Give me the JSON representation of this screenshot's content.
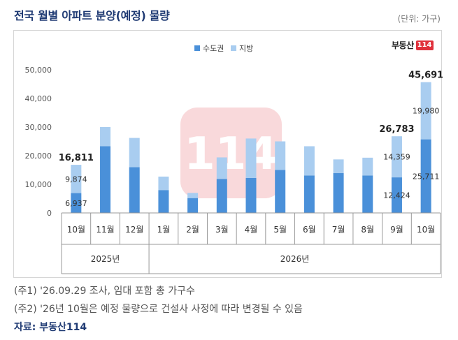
{
  "header": {
    "title": "전국 월별 아파트 분양(예정) 물량",
    "unit": "(단위: 가구)"
  },
  "brand": {
    "text": "부동산",
    "badge": "114"
  },
  "watermark": "114",
  "notes": [
    "(주1) '26.09.29 조사, 임대 포함 총 가구수",
    "(주2) '26년 10월은 예정 물량으로 건설사 사정에 따라 변경될 수 있음"
  ],
  "source": "자료: 부동산114",
  "colors": {
    "metro": "#4a90d9",
    "local": "#a9cdf0",
    "axis": "#999999",
    "title": "#1f3a73"
  },
  "chart_data": {
    "type": "bar",
    "stacked": true,
    "categories": [
      "10월",
      "11월",
      "12월",
      "1월",
      "2월",
      "3월",
      "4월",
      "5월",
      "6월",
      "7월",
      "8월",
      "9월",
      "10월"
    ],
    "groups": [
      {
        "label": "2025년",
        "start": 0,
        "end": 2
      },
      {
        "label": "2026년",
        "start": 3,
        "end": 12
      }
    ],
    "series": [
      {
        "name": "수도권",
        "values": [
          6937,
          23300,
          16000,
          8000,
          5200,
          11900,
          12200,
          15000,
          13100,
          13900,
          13100,
          12424,
          25711
        ]
      },
      {
        "name": "지방",
        "values": [
          9874,
          6700,
          10200,
          4700,
          1800,
          7500,
          13800,
          10000,
          10200,
          4800,
          6200,
          14359,
          19980
        ]
      }
    ],
    "totals_labeled": {
      "0": "16,811",
      "11": "26,783",
      "12": "45,691"
    },
    "segment_labels": [
      {
        "index": 0,
        "series": 0,
        "text": "6,937"
      },
      {
        "index": 0,
        "series": 1,
        "text": "9,874"
      },
      {
        "index": 11,
        "series": 0,
        "text": "12,424"
      },
      {
        "index": 11,
        "series": 1,
        "text": "14,359"
      },
      {
        "index": 12,
        "series": 0,
        "text": "25,711"
      },
      {
        "index": 12,
        "series": 1,
        "text": "19,980"
      }
    ],
    "yticks": [
      "0",
      "10,000",
      "20,000",
      "30,000",
      "40,000",
      "50,000"
    ],
    "ylim": [
      0,
      50000
    ],
    "legend": "top-center"
  }
}
